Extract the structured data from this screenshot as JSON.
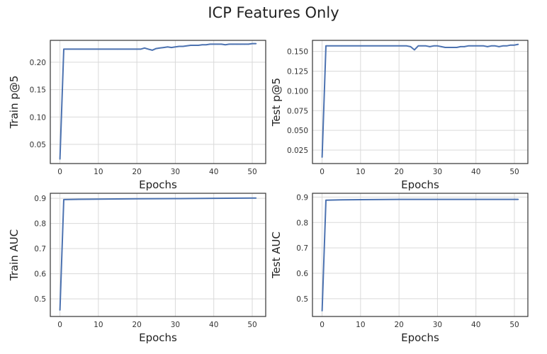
{
  "figure_title": "ICP Features Only",
  "colors": {
    "line": "#4c72b0",
    "grid": "#d9d9d9",
    "frame": "#333333"
  },
  "chart_data": [
    {
      "type": "line",
      "ylabel": "Train p@5",
      "xlabel": "Epochs",
      "xlim": [
        -2.5,
        53.5
      ],
      "ylim": [
        0.015,
        0.24
      ],
      "xticks": [
        0,
        10,
        20,
        30,
        40,
        50
      ],
      "yticks": [
        0.05,
        0.1,
        0.15,
        0.2
      ],
      "ytick_labels": [
        "0.05",
        "0.10",
        "0.15",
        "0.20"
      ],
      "grid": true,
      "series": [
        {
          "x": [
            0,
            1,
            5,
            10,
            15,
            20,
            21,
            22,
            23,
            24,
            25,
            26,
            27,
            28,
            29,
            30,
            31,
            32,
            33,
            34,
            35,
            36,
            37,
            38,
            39,
            40,
            41,
            42,
            43,
            44,
            45,
            46,
            47,
            48,
            49,
            50,
            51
          ],
          "y": [
            0.023,
            0.224,
            0.224,
            0.224,
            0.224,
            0.224,
            0.224,
            0.226,
            0.224,
            0.222,
            0.225,
            0.226,
            0.227,
            0.228,
            0.227,
            0.228,
            0.229,
            0.229,
            0.23,
            0.231,
            0.231,
            0.231,
            0.232,
            0.232,
            0.233,
            0.233,
            0.233,
            0.233,
            0.232,
            0.233,
            0.233,
            0.233,
            0.233,
            0.233,
            0.233,
            0.234,
            0.234
          ]
        }
      ]
    },
    {
      "type": "line",
      "ylabel": "Test p@5",
      "xlabel": "Epochs",
      "xlim": [
        -2.5,
        53.5
      ],
      "ylim": [
        0.008,
        0.164
      ],
      "xticks": [
        0,
        10,
        20,
        30,
        40,
        50
      ],
      "yticks": [
        0.025,
        0.05,
        0.075,
        0.1,
        0.125,
        0.15
      ],
      "ytick_labels": [
        "0.025",
        "0.050",
        "0.075",
        "0.100",
        "0.125",
        "0.150"
      ],
      "grid": true,
      "series": [
        {
          "x": [
            0,
            1,
            5,
            10,
            15,
            20,
            22,
            23,
            24,
            25,
            26,
            27,
            28,
            29,
            30,
            31,
            32,
            33,
            34,
            35,
            36,
            37,
            38,
            39,
            40,
            41,
            42,
            43,
            44,
            45,
            46,
            47,
            48,
            49,
            50,
            51
          ],
          "y": [
            0.016,
            0.157,
            0.157,
            0.157,
            0.157,
            0.157,
            0.157,
            0.156,
            0.152,
            0.157,
            0.157,
            0.157,
            0.156,
            0.157,
            0.157,
            0.156,
            0.155,
            0.155,
            0.155,
            0.155,
            0.156,
            0.156,
            0.157,
            0.157,
            0.157,
            0.157,
            0.157,
            0.156,
            0.157,
            0.157,
            0.156,
            0.157,
            0.157,
            0.158,
            0.158,
            0.159
          ]
        }
      ]
    },
    {
      "type": "line",
      "ylabel": "Train AUC",
      "xlabel": "Epochs",
      "xlim": [
        -2.5,
        53.5
      ],
      "ylim": [
        0.43,
        0.92
      ],
      "xticks": [
        0,
        10,
        20,
        30,
        40,
        50
      ],
      "yticks": [
        0.5,
        0.6,
        0.7,
        0.8,
        0.9
      ],
      "ytick_labels": [
        "0.5",
        "0.6",
        "0.7",
        "0.8",
        "0.9"
      ],
      "grid": true,
      "series": [
        {
          "x": [
            0,
            1,
            5,
            10,
            20,
            30,
            40,
            50,
            51
          ],
          "y": [
            0.455,
            0.895,
            0.896,
            0.897,
            0.898,
            0.899,
            0.9,
            0.901,
            0.901
          ]
        }
      ]
    },
    {
      "type": "line",
      "ylabel": "Test AUC",
      "xlabel": "Epochs",
      "xlim": [
        -2.5,
        53.5
      ],
      "ylim": [
        0.43,
        0.915
      ],
      "xticks": [
        0,
        10,
        20,
        30,
        40,
        50
      ],
      "yticks": [
        0.5,
        0.6,
        0.7,
        0.8,
        0.9
      ],
      "ytick_labels": [
        "0.5",
        "0.6",
        "0.7",
        "0.8",
        "0.9"
      ],
      "grid": true,
      "series": [
        {
          "x": [
            0,
            1,
            5,
            10,
            20,
            30,
            40,
            50,
            51
          ],
          "y": [
            0.452,
            0.888,
            0.889,
            0.89,
            0.891,
            0.891,
            0.891,
            0.891,
            0.891
          ]
        }
      ]
    }
  ]
}
